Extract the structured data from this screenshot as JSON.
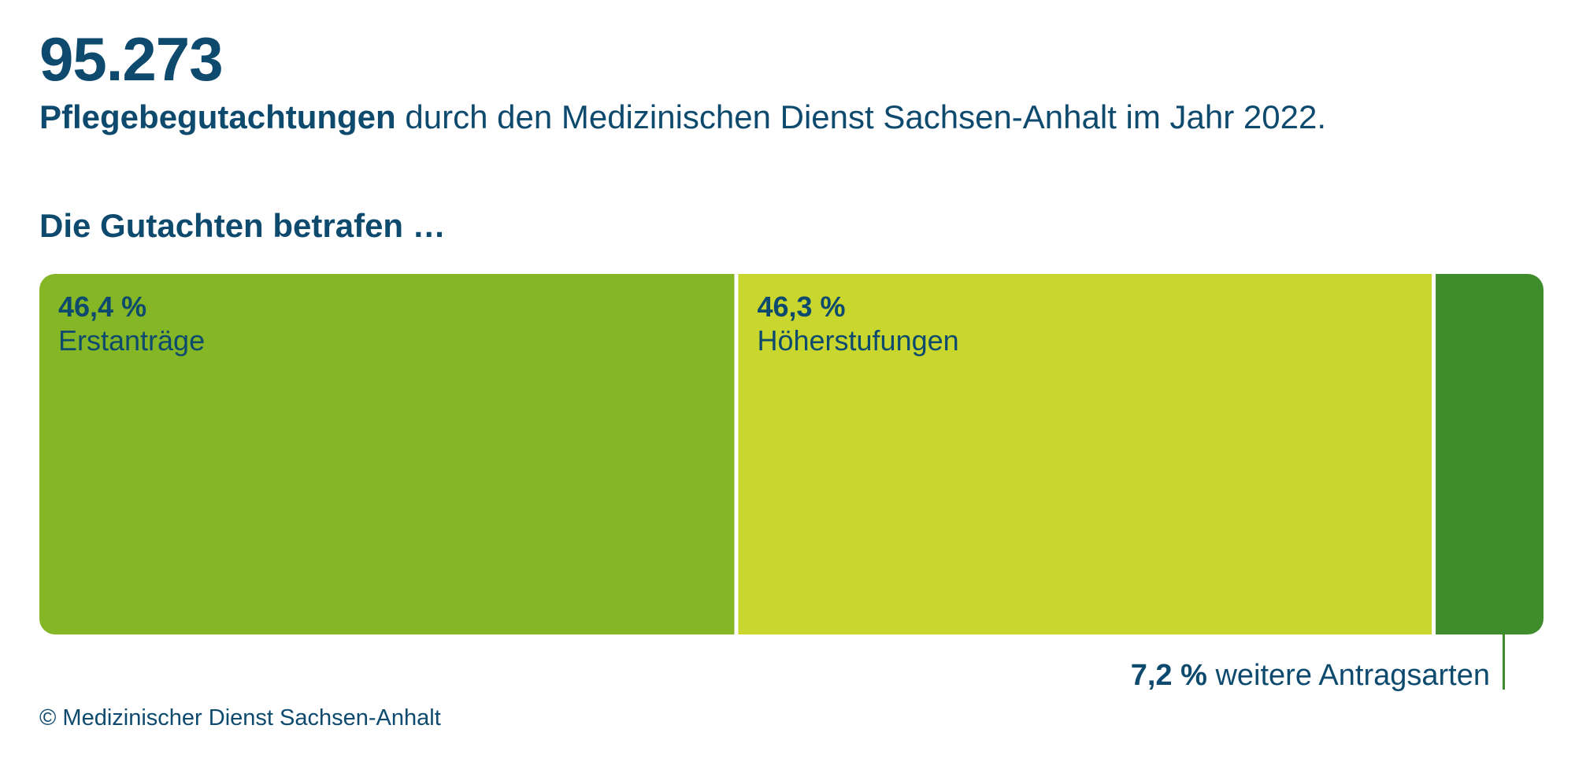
{
  "header": {
    "number": "95.273",
    "subtitle_bold": "Pflegebegutachtungen",
    "subtitle_rest": " durch den Medizinischen Dienst Sachsen-Anhalt im Jahr 2022."
  },
  "section_title": "Die Gutachten betrafen …",
  "chart_data": {
    "type": "bar",
    "orientation": "horizontal-stacked-100",
    "title": "",
    "categories": [
      "Erstanträge",
      "Höherstufungen",
      "weitere Antragsarten"
    ],
    "values": [
      46.4,
      46.3,
      7.2
    ],
    "unit": "%",
    "labels": [
      "46,4 %",
      "46,3 %",
      "7,2 %"
    ],
    "colors": [
      "#84b625",
      "#c8d62e",
      "#3e8c2b"
    ]
  },
  "footer": {
    "copyright": "© Medizinischer Dienst Sachsen-Anhalt"
  },
  "colors": {
    "text": "#0d4a6e",
    "accent_dark_green": "#3e8c2b"
  }
}
